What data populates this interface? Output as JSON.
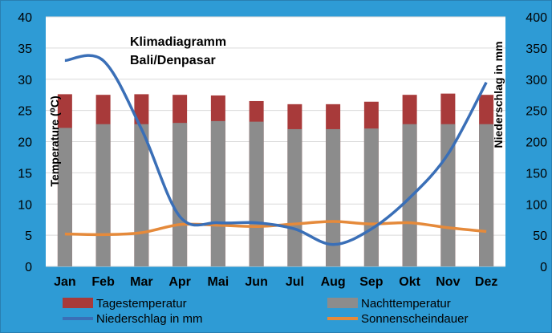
{
  "chart_data": {
    "type": "bar",
    "title": "Klimadiagramm",
    "subtitle": "Bali/Denpasar",
    "categories": [
      "Jan",
      "Feb",
      "Mar",
      "Apr",
      "Mai",
      "Jun",
      "Jul",
      "Aug",
      "Sep",
      "Okt",
      "Nov",
      "Dez"
    ],
    "ylabel_left": "Temperature (⁰C)",
    "ylabel_right": "Niederschlag in mm",
    "ylim_left": [
      0,
      40
    ],
    "ylim_right": [
      0,
      400
    ],
    "yticks_left": [
      "0",
      "5",
      "10",
      "15",
      "20",
      "25",
      "30",
      "35",
      "40"
    ],
    "yticks_right": [
      "0",
      "50",
      "100",
      "150",
      "200",
      "250",
      "300",
      "350",
      "400"
    ],
    "series": [
      {
        "name": "Tagestemperatur",
        "type": "bar",
        "axis": "left",
        "color": "#A83A3A",
        "values": [
          27.6,
          27.5,
          27.6,
          27.5,
          27.4,
          26.5,
          26.0,
          26.0,
          26.4,
          27.5,
          27.7,
          27.5
        ]
      },
      {
        "name": "Nachttemperatur",
        "type": "bar",
        "axis": "left",
        "color": "#8C8C8C",
        "values": [
          22.2,
          22.8,
          22.8,
          23.0,
          23.3,
          23.2,
          22.0,
          22.0,
          22.1,
          22.8,
          22.8,
          22.8
        ]
      },
      {
        "name": "Niederschlag in mm",
        "type": "line",
        "axis": "right",
        "color": "#3A6FB7",
        "values": [
          330,
          330,
          220,
          80,
          70,
          70,
          60,
          35,
          60,
          110,
          180,
          295
        ]
      },
      {
        "name": "Sonnenscheindauer",
        "type": "line",
        "axis": "left",
        "color": "#E58A3B",
        "values": [
          5.2,
          5.1,
          5.4,
          6.7,
          6.6,
          6.4,
          6.8,
          7.2,
          6.8,
          7.0,
          6.2,
          5.6
        ]
      }
    ],
    "legend": {
      "position": "bottom",
      "items": [
        {
          "label": "Tagestemperatur",
          "kind": "box",
          "color": "#A83A3A"
        },
        {
          "label": "Nachttemperatur",
          "kind": "box",
          "color": "#8C8C8C"
        },
        {
          "label": "Niederschlag in mm",
          "kind": "line",
          "color": "#3A6FB7"
        },
        {
          "label": "Sonnenscheindauer",
          "kind": "line",
          "color": "#E58A3B"
        }
      ]
    },
    "grid": true,
    "colors": {
      "background": "#2E9BD5",
      "plot_area": "#FFFFFF",
      "gridline": "#D9D9D9"
    }
  }
}
